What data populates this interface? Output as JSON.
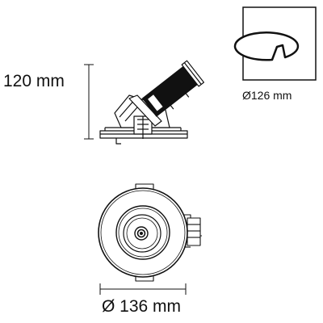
{
  "dimensions": {
    "height_label": "120 mm",
    "cutout_label": "Ø126 mm",
    "diameter_label": "Ø 136 mm"
  },
  "icons": {
    "cutout": "cutout-icon",
    "side_view": "side-view-drawing",
    "top_view": "top-view-drawing"
  },
  "colors": {
    "line": "#111111",
    "background": "#ffffff"
  }
}
